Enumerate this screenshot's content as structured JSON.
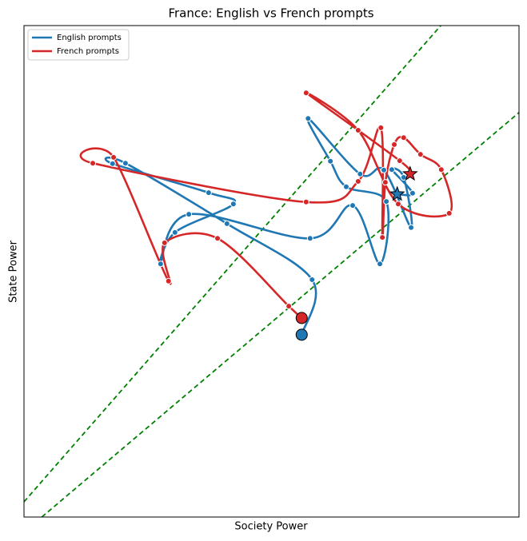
{
  "chart_data": {
    "type": "line",
    "title": "France: English vs French prompts",
    "x_label": "Society Power",
    "y_label": "State Power",
    "xlim": [
      0,
      100
    ],
    "ylim": [
      0,
      100
    ],
    "legend": "upper left",
    "series": [
      {
        "name": "English prompts",
        "color": "#1f77b4",
        "x": [
          56.1,
          58.2,
          41.0,
          20.5,
          17.9,
          37.3,
          42.3,
          30.5,
          27.6,
          33.3,
          57.8,
          66.4,
          71.9,
          73.2,
          65.1,
          61.9,
          57.4,
          67.9,
          72.7,
          78.2,
          76.7,
          74.3,
          78.5,
          75.4
        ],
        "values": [
          37.1,
          48.3,
          59.7,
          72.0,
          71.9,
          66.0,
          63.7,
          57.9,
          51.5,
          61.6,
          56.7,
          63.4,
          51.5,
          64.2,
          67.2,
          72.4,
          81.1,
          69.8,
          70.6,
          58.9,
          69.1,
          70.7,
          65.9,
          65.7
        ]
      },
      {
        "name": "French prompts",
        "color": "#d62728",
        "x": [
          56.1,
          53.5,
          39.1,
          28.4,
          29.2,
          18.1,
          13.9,
          57.0,
          67.5,
          72.1,
          72.4,
          73.0,
          74.8,
          76.7,
          80.1,
          84.3,
          85.9,
          75.6,
          67.5,
          57.0,
          75.9,
          78.0
        ],
        "values": [
          40.5,
          42.9,
          56.7,
          55.8,
          48.0,
          73.2,
          72.0,
          64.1,
          68.3,
          79.2,
          56.9,
          68.1,
          75.8,
          77.2,
          73.8,
          70.7,
          61.8,
          63.7,
          78.7,
          86.3,
          72.5,
          69.8
        ]
      }
    ],
    "reference_lines": [
      {
        "color": "#008000",
        "x": [
          0,
          84.2
        ],
        "values": [
          3.1,
          100
        ]
      },
      {
        "color": "#008000",
        "x": [
          3.6,
          100
        ],
        "values": [
          0,
          82.3
        ]
      }
    ]
  }
}
